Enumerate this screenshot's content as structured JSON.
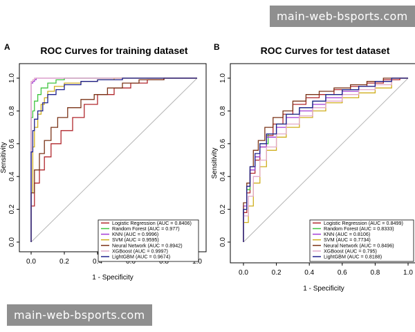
{
  "watermark_top": "main-web-bsports.com",
  "watermark_bottom": "main-web-bsports.com",
  "colors": {
    "Logistic Regression": "#b0262b",
    "Random Forest": "#3ec43e",
    "KNN": "#a23ad6",
    "SVM": "#cfae1c",
    "Neural Network": "#7a3216",
    "XGBoost": "#e2a8c8",
    "LightGBM": "#1d1f8c",
    "diagonal": "#b5b5b5"
  },
  "chart_data": [
    {
      "type": "line",
      "panel_label": "A",
      "title": "ROC Curves for training dataset",
      "xlabel": "1 - Specificity",
      "ylabel": "Sensitivity",
      "xlim": [
        0,
        1
      ],
      "ylim": [
        0,
        1
      ],
      "x_ticks": [
        "0.0",
        "0.2",
        "0.4",
        "0.6",
        "0.8",
        "1.0"
      ],
      "y_ticks": [
        "0.0",
        "0.2",
        "0.4",
        "0.6",
        "0.8",
        "1.0"
      ],
      "legend_position": "bottom-right",
      "series": [
        {
          "name": "Logistic Regression",
          "legend": "Logistic Regression (AUC = 0.8406)",
          "x": [
            0,
            0.02,
            0.05,
            0.08,
            0.12,
            0.18,
            0.25,
            0.32,
            0.4,
            0.5,
            0.6,
            0.7,
            0.8,
            0.9,
            1.0
          ],
          "y": [
            0,
            0.22,
            0.36,
            0.44,
            0.52,
            0.6,
            0.68,
            0.76,
            0.84,
            0.9,
            0.94,
            0.97,
            0.99,
            1.0,
            1.0
          ]
        },
        {
          "name": "Random Forest",
          "legend": "Random Forest (AUC = 0.977)",
          "x": [
            0,
            0,
            0.01,
            0.02,
            0.04,
            0.06,
            0.1,
            0.15,
            0.2,
            0.3,
            0.4,
            0.6,
            1.0
          ],
          "y": [
            0,
            0.72,
            0.76,
            0.8,
            0.86,
            0.9,
            0.94,
            0.97,
            0.99,
            1.0,
            1.0,
            1.0,
            1.0
          ]
        },
        {
          "name": "KNN",
          "legend": "KNN (AUC = 0.9996)",
          "x": [
            0,
            0,
            0.01,
            0.02,
            0.03,
            0.05,
            0.1,
            0.3,
            1.0
          ],
          "y": [
            0,
            0.94,
            0.97,
            0.98,
            0.99,
            1.0,
            1.0,
            1.0,
            1.0
          ]
        },
        {
          "name": "SVM",
          "legend": "SVM (AUC = 0.9595)",
          "x": [
            0,
            0.01,
            0.02,
            0.04,
            0.06,
            0.08,
            0.1,
            0.14,
            0.2,
            0.3,
            0.4,
            0.5,
            0.7,
            1.0
          ],
          "y": [
            0,
            0.3,
            0.58,
            0.7,
            0.78,
            0.84,
            0.88,
            0.92,
            0.95,
            0.97,
            0.98,
            0.99,
            1.0,
            1.0
          ]
        },
        {
          "name": "Neural Network",
          "legend": "Neural Network (AUC = 0.8942)",
          "x": [
            0,
            0.02,
            0.05,
            0.08,
            0.12,
            0.16,
            0.22,
            0.3,
            0.38,
            0.46,
            0.55,
            0.65,
            0.8,
            1.0
          ],
          "y": [
            0,
            0.3,
            0.44,
            0.54,
            0.62,
            0.7,
            0.76,
            0.82,
            0.87,
            0.9,
            0.94,
            0.97,
            0.99,
            1.0
          ]
        },
        {
          "name": "XGBoost",
          "legend": "XGBoost (AUC = 0.9997)",
          "x": [
            0,
            0,
            0.01,
            0.02,
            0.04,
            0.1,
            1.0
          ],
          "y": [
            0,
            0.96,
            0.98,
            0.99,
            1.0,
            1.0,
            1.0
          ]
        },
        {
          "name": "LightGBM",
          "legend": "LightGBM (AUC = 0.9674)",
          "x": [
            0,
            0.01,
            0.02,
            0.04,
            0.07,
            0.1,
            0.15,
            0.2,
            0.3,
            0.4,
            0.55,
            0.7,
            1.0
          ],
          "y": [
            0,
            0.55,
            0.68,
            0.75,
            0.8,
            0.85,
            0.9,
            0.93,
            0.96,
            0.98,
            0.99,
            1.0,
            1.0
          ]
        }
      ]
    },
    {
      "type": "line",
      "panel_label": "B",
      "title": "ROC Curves for test dataset",
      "xlabel": "1 - Specificity",
      "ylabel": "Sensitivity",
      "xlim": [
        0,
        1
      ],
      "ylim": [
        0,
        1
      ],
      "x_ticks": [
        "0.0",
        "0.2",
        "0.4",
        "0.6",
        "0.8",
        "1.0"
      ],
      "y_ticks": [
        "0.0",
        "0.2",
        "0.4",
        "0.6",
        "0.8",
        "1.0"
      ],
      "legend_position": "bottom-right",
      "series": [
        {
          "name": "Logistic Regression",
          "legend": "Logistic Regression (AUC = 0.8499)",
          "x": [
            0,
            0.02,
            0.04,
            0.07,
            0.1,
            0.14,
            0.18,
            0.24,
            0.3,
            0.38,
            0.46,
            0.55,
            0.65,
            0.75,
            0.85,
            0.95,
            1.0
          ],
          "y": [
            0,
            0.18,
            0.3,
            0.42,
            0.5,
            0.58,
            0.65,
            0.72,
            0.78,
            0.84,
            0.88,
            0.9,
            0.93,
            0.95,
            0.97,
            0.99,
            1.0
          ]
        },
        {
          "name": "Random Forest",
          "legend": "Random Forest (AUC = 0.8333)",
          "x": [
            0,
            0.02,
            0.04,
            0.07,
            0.1,
            0.15,
            0.2,
            0.26,
            0.34,
            0.42,
            0.5,
            0.6,
            0.7,
            0.8,
            0.9,
            1.0
          ],
          "y": [
            0,
            0.2,
            0.32,
            0.44,
            0.52,
            0.6,
            0.66,
            0.72,
            0.78,
            0.82,
            0.86,
            0.9,
            0.93,
            0.95,
            0.98,
            1.0
          ]
        },
        {
          "name": "KNN",
          "legend": "KNN (AUC = 0.8106)",
          "x": [
            0,
            0.02,
            0.04,
            0.07,
            0.1,
            0.14,
            0.2,
            0.26,
            0.34,
            0.42,
            0.5,
            0.6,
            0.7,
            0.8,
            0.9,
            1.0
          ],
          "y": [
            0,
            0.22,
            0.34,
            0.44,
            0.52,
            0.58,
            0.64,
            0.7,
            0.76,
            0.8,
            0.84,
            0.88,
            0.92,
            0.95,
            0.98,
            1.0
          ]
        },
        {
          "name": "SVM",
          "legend": "SVM (AUC = 0.7734)",
          "x": [
            0,
            0.03,
            0.06,
            0.1,
            0.14,
            0.2,
            0.26,
            0.34,
            0.42,
            0.5,
            0.6,
            0.7,
            0.8,
            0.9,
            1.0
          ],
          "y": [
            0,
            0.12,
            0.22,
            0.36,
            0.46,
            0.56,
            0.64,
            0.7,
            0.76,
            0.8,
            0.85,
            0.88,
            0.91,
            0.94,
            1.0
          ]
        },
        {
          "name": "Neural Network",
          "legend": "Neural Network (AUC = 0.8496)",
          "x": [
            0,
            0.02,
            0.04,
            0.06,
            0.09,
            0.13,
            0.18,
            0.24,
            0.3,
            0.38,
            0.46,
            0.55,
            0.65,
            0.75,
            0.85,
            0.95,
            1.0
          ],
          "y": [
            0,
            0.24,
            0.36,
            0.46,
            0.56,
            0.62,
            0.7,
            0.76,
            0.8,
            0.86,
            0.9,
            0.92,
            0.94,
            0.96,
            0.98,
            1.0,
            1.0
          ]
        },
        {
          "name": "XGBoost",
          "legend": "XGBoost (AUC = 0.795)",
          "x": [
            0,
            0.03,
            0.06,
            0.1,
            0.14,
            0.2,
            0.26,
            0.34,
            0.42,
            0.5,
            0.6,
            0.7,
            0.8,
            0.9,
            1.0
          ],
          "y": [
            0,
            0.16,
            0.28,
            0.4,
            0.5,
            0.58,
            0.66,
            0.72,
            0.77,
            0.82,
            0.86,
            0.9,
            0.93,
            0.96,
            1.0
          ]
        },
        {
          "name": "LightGBM",
          "legend": "LightGBM (AUC = 0.8188)",
          "x": [
            0,
            0.02,
            0.04,
            0.07,
            0.1,
            0.14,
            0.2,
            0.26,
            0.34,
            0.42,
            0.5,
            0.6,
            0.7,
            0.8,
            0.9,
            1.0
          ],
          "y": [
            0,
            0.2,
            0.34,
            0.46,
            0.54,
            0.6,
            0.66,
            0.72,
            0.78,
            0.82,
            0.86,
            0.9,
            0.93,
            0.95,
            0.98,
            1.0
          ]
        }
      ]
    }
  ]
}
